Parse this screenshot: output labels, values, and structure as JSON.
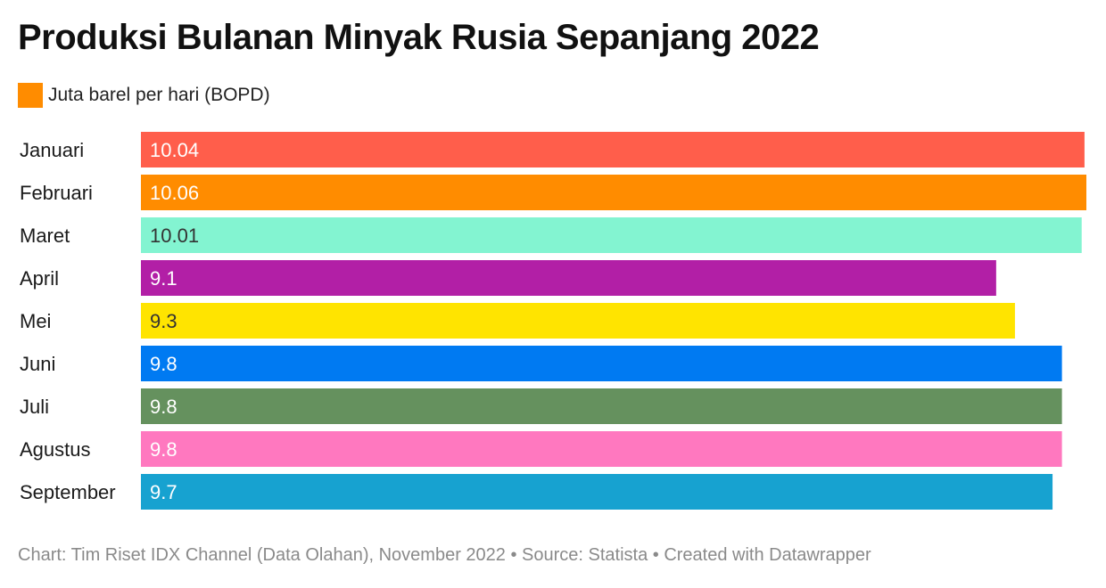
{
  "title": "Produksi Bulanan Minyak Rusia Sepanjang 2022",
  "footer": "Chart: Tim Riset IDX Channel (Data Olahan), November 2022 • Source: Statista • Created with Datawrapper",
  "chart_data": {
    "type": "bar",
    "orientation": "horizontal",
    "title": "Produksi Bulanan Minyak Rusia Sepanjang 2022",
    "legend": [
      {
        "label": "Juta barel per hari (BOPD)",
        "color": "#FF8C00"
      }
    ],
    "legend_position": "top-left",
    "grid": false,
    "xlim": [
      0,
      10.06
    ],
    "categories": [
      "Januari",
      "Februari",
      "Maret",
      "April",
      "Mei",
      "Juni",
      "Juli",
      "Agustus",
      "September"
    ],
    "series": [
      {
        "name": "Juta barel per hari (BOPD)",
        "values": [
          10.04,
          10.06,
          10.01,
          9.1,
          9.3,
          9.8,
          9.8,
          9.8,
          9.7
        ]
      }
    ],
    "value_labels": [
      "10.04",
      "10.06",
      "10.01",
      "9.1",
      "9.3",
      "9.8",
      "9.8",
      "9.8",
      "9.7"
    ],
    "bar_colors": [
      "#FF5E4B",
      "#FF8C00",
      "#83F4D1",
      "#B21FA6",
      "#FFE400",
      "#007AF2",
      "#65915E",
      "#FF78BF",
      "#17A2D0"
    ],
    "label_colors": [
      "#ffffff",
      "#ffffff",
      "#333333",
      "#ffffff",
      "#333333",
      "#ffffff",
      "#ffffff",
      "#ffffff",
      "#ffffff"
    ]
  }
}
